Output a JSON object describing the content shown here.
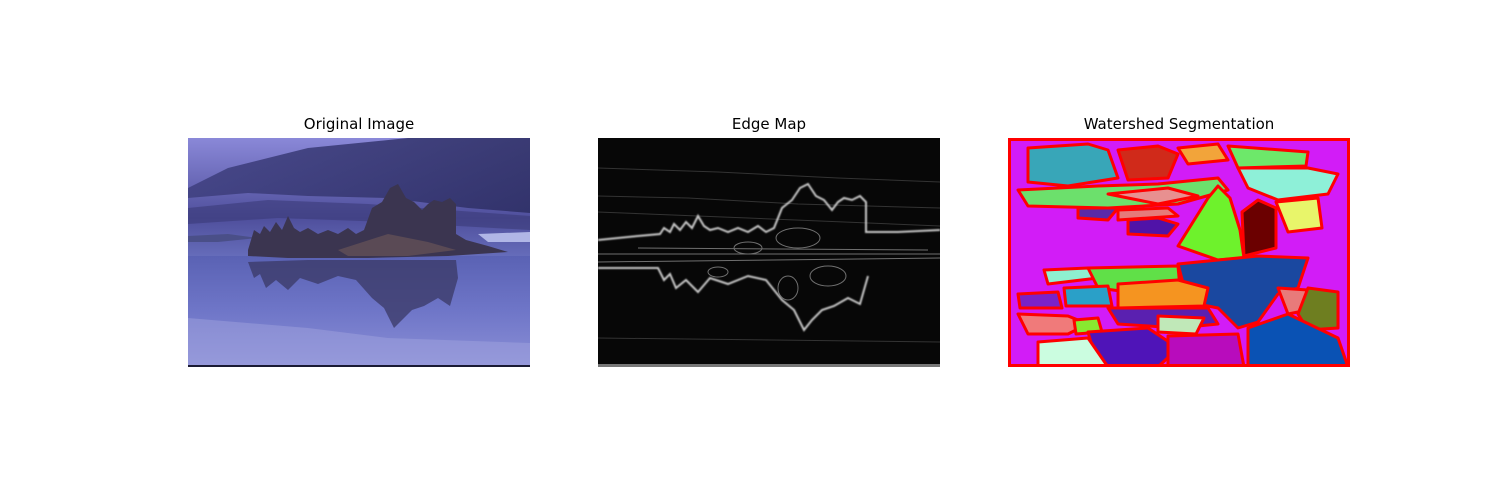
{
  "figure": {
    "panels": [
      {
        "title": "Original Image",
        "content": "lake-landscape-photo"
      },
      {
        "title": "Edge Map",
        "content": "edge-map-image"
      },
      {
        "title": "Watershed Segmentation",
        "content": "segmentation-image"
      }
    ],
    "colors": {
      "background": "#ffffff",
      "segment_boundary": "#ff0000",
      "segmentation_fill": "#d21cf7"
    }
  }
}
